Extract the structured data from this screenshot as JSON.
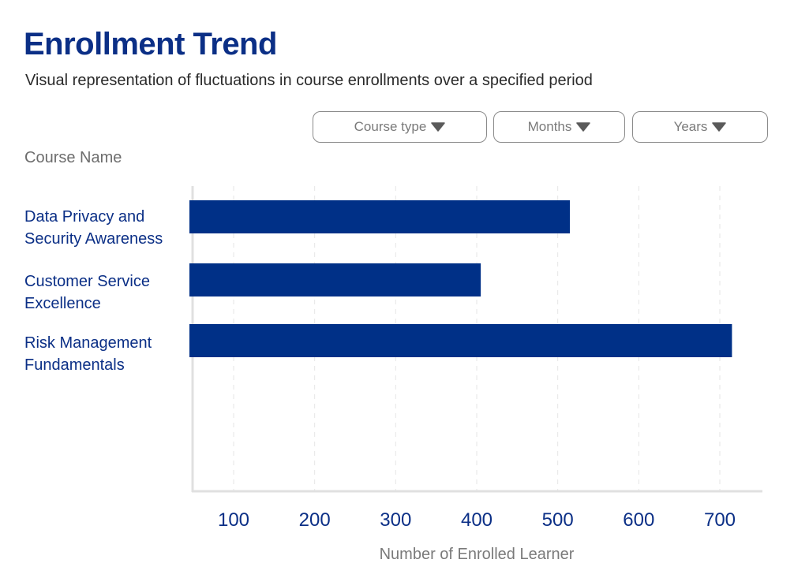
{
  "title": "Enrollment Trend",
  "subtitle": "Visual representation of fluctuations in course enrollments over a specified period",
  "filters": {
    "course_type": "Course type",
    "months": "Months",
    "years": "Years",
    "caret_icon": "caret-down-icon"
  },
  "colors": {
    "bar": "#003087",
    "title": "#0b2f86",
    "axis": "#e0e0e0",
    "grid": "#e6e6e6"
  },
  "chart_data": {
    "type": "bar",
    "orientation": "horizontal",
    "ylabel": "Course Name",
    "xlabel": "Number of Enrolled Learner",
    "categories": [
      [
        "Data Privacy and",
        "Security Awareness"
      ],
      [
        "Customer Service",
        "Excellence"
      ],
      [
        "Risk Management",
        "Fundamentals"
      ]
    ],
    "values": [
      515,
      405,
      715
    ],
    "xticks": [
      100,
      200,
      300,
      400,
      500,
      600,
      700
    ],
    "xlim": [
      50,
      750
    ],
    "grid": "vertical dashed",
    "legend": "none"
  }
}
